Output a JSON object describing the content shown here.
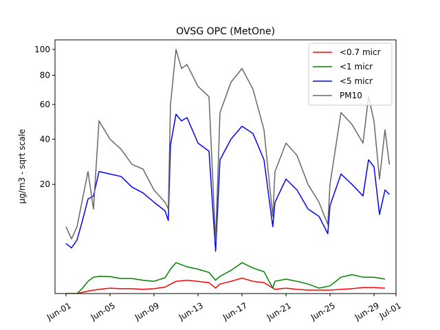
{
  "chart_data": {
    "type": "line",
    "title": "OVSG OPC (MetOne)",
    "xlabel": "",
    "ylabel": "µg/m3 - sqrt scale",
    "y_scale": "sqrt",
    "ylim": [
      0,
      108
    ],
    "xlim": [
      "2024-05-31",
      "2024-07-01"
    ],
    "x_ticks": [
      {
        "date": "2024-06-01",
        "label": "Jun-01"
      },
      {
        "date": "2024-06-05",
        "label": "Jun-05"
      },
      {
        "date": "2024-06-09",
        "label": "Jun-09"
      },
      {
        "date": "2024-06-13",
        "label": "Jun-13"
      },
      {
        "date": "2024-06-17",
        "label": "Jun-17"
      },
      {
        "date": "2024-06-21",
        "label": "Jun-21"
      },
      {
        "date": "2024-06-25",
        "label": "Jun-25"
      },
      {
        "date": "2024-06-29",
        "label": "Jun-29"
      },
      {
        "date": "2024-07-01",
        "label": "Jul-01"
      }
    ],
    "y_ticks": [
      20,
      40,
      60,
      80,
      100
    ],
    "grid": false,
    "legend_position": "top-right",
    "series": [
      {
        "name": "<0.7 micr",
        "color": "#ff0000",
        "points": [
          [
            "2024-06-01",
            0.0
          ],
          [
            "2024-06-02",
            0.0
          ],
          [
            "2024-06-03",
            0.01
          ],
          [
            "2024-06-04",
            0.03
          ],
          [
            "2024-06-05",
            0.05
          ],
          [
            "2024-06-06",
            0.04
          ],
          [
            "2024-06-07",
            0.04
          ],
          [
            "2024-06-08",
            0.03
          ],
          [
            "2024-06-09",
            0.04
          ],
          [
            "2024-06-10",
            0.07
          ],
          [
            "2024-06-11",
            0.25
          ],
          [
            "2024-06-12",
            0.3
          ],
          [
            "2024-06-13",
            0.25
          ],
          [
            "2024-06-14",
            0.2
          ],
          [
            "2024-06-14.6",
            0.05
          ],
          [
            "2024-06-15",
            0.15
          ],
          [
            "2024-06-16",
            0.25
          ],
          [
            "2024-06-17",
            0.4
          ],
          [
            "2024-06-18",
            0.25
          ],
          [
            "2024-06-19",
            0.2
          ],
          [
            "2024-06-20",
            0.03
          ],
          [
            "2024-06-21",
            0.05
          ],
          [
            "2024-06-22",
            0.03
          ],
          [
            "2024-06-23",
            0.02
          ],
          [
            "2024-06-24",
            0.02
          ],
          [
            "2024-06-25",
            0.02
          ],
          [
            "2024-06-26",
            0.03
          ],
          [
            "2024-06-27",
            0.04
          ],
          [
            "2024-06-28",
            0.06
          ],
          [
            "2024-06-29",
            0.06
          ],
          [
            "2024-06-30",
            0.05
          ]
        ]
      },
      {
        "name": "<1 micr",
        "color": "#008000",
        "points": [
          [
            "2024-06-01",
            0.0
          ],
          [
            "2024-06-02",
            0.0
          ],
          [
            "2024-06-02.5",
            0.05
          ],
          [
            "2024-06-03",
            0.25
          ],
          [
            "2024-06-03.5",
            0.45
          ],
          [
            "2024-06-04",
            0.5
          ],
          [
            "2024-06-05",
            0.48
          ],
          [
            "2024-06-06",
            0.38
          ],
          [
            "2024-06-07",
            0.38
          ],
          [
            "2024-06-08",
            0.3
          ],
          [
            "2024-06-09",
            0.25
          ],
          [
            "2024-06-10",
            0.42
          ],
          [
            "2024-06-10.5",
            1.0
          ],
          [
            "2024-06-11",
            1.6
          ],
          [
            "2024-06-12",
            1.2
          ],
          [
            "2024-06-13",
            1.0
          ],
          [
            "2024-06-14",
            0.75
          ],
          [
            "2024-06-14.6",
            0.3
          ],
          [
            "2024-06-15",
            0.5
          ],
          [
            "2024-06-16",
            0.9
          ],
          [
            "2024-06-17",
            1.6
          ],
          [
            "2024-06-18",
            1.1
          ],
          [
            "2024-06-19",
            0.8
          ],
          [
            "2024-06-19.8",
            0.05
          ],
          [
            "2024-06-20",
            0.25
          ],
          [
            "2024-06-21",
            0.35
          ],
          [
            "2024-06-22",
            0.25
          ],
          [
            "2024-06-23",
            0.15
          ],
          [
            "2024-06-24",
            0.05
          ],
          [
            "2024-06-25",
            0.1
          ],
          [
            "2024-06-26",
            0.45
          ],
          [
            "2024-06-27",
            0.6
          ],
          [
            "2024-06-28",
            0.45
          ],
          [
            "2024-06-29",
            0.45
          ],
          [
            "2024-06-30",
            0.35
          ]
        ]
      },
      {
        "name": "<5 micr",
        "color": "#0000ff",
        "points": [
          [
            "2024-06-01",
            4.2
          ],
          [
            "2024-06-01.5",
            3.5
          ],
          [
            "2024-06-02",
            4.8
          ],
          [
            "2024-06-02.5",
            9.0
          ],
          [
            "2024-06-03",
            15.0
          ],
          [
            "2024-06-03.5",
            16.0
          ],
          [
            "2024-06-04",
            25.0
          ],
          [
            "2024-06-05",
            24.0
          ],
          [
            "2024-06-06",
            23.0
          ],
          [
            "2024-06-07",
            19.0
          ],
          [
            "2024-06-08",
            17.0
          ],
          [
            "2024-06-09",
            14.0
          ],
          [
            "2024-06-10",
            11.5
          ],
          [
            "2024-06-10.3",
            9.0
          ],
          [
            "2024-06-10.5",
            37.0
          ],
          [
            "2024-06-11",
            54.0
          ],
          [
            "2024-06-11.5",
            50.0
          ],
          [
            "2024-06-12",
            52.0
          ],
          [
            "2024-06-13",
            38.0
          ],
          [
            "2024-06-14",
            34.0
          ],
          [
            "2024-06-14.6",
            3.0
          ],
          [
            "2024-06-15",
            30.0
          ],
          [
            "2024-06-16",
            40.0
          ],
          [
            "2024-06-17",
            47.0
          ],
          [
            "2024-06-18",
            43.0
          ],
          [
            "2024-06-19",
            30.0
          ],
          [
            "2024-06-19.8",
            7.5
          ],
          [
            "2024-06-20",
            14.0
          ],
          [
            "2024-06-21",
            22.0
          ],
          [
            "2024-06-22",
            18.0
          ],
          [
            "2024-06-23",
            12.0
          ],
          [
            "2024-06-24",
            10.0
          ],
          [
            "2024-06-24.8",
            6.0
          ],
          [
            "2024-06-25",
            13.0
          ],
          [
            "2024-06-26",
            24.0
          ],
          [
            "2024-06-27",
            20.0
          ],
          [
            "2024-06-28",
            16.0
          ],
          [
            "2024-06-28.5",
            30.0
          ],
          [
            "2024-06-29",
            27.0
          ],
          [
            "2024-06-29.5",
            10.5
          ],
          [
            "2024-06-30",
            18.0
          ],
          [
            "2024-06-30.4",
            16.5
          ]
        ]
      },
      {
        "name": "PM10",
        "color": "#666666",
        "points": [
          [
            "2024-06-01",
            7.5
          ],
          [
            "2024-06-01.5",
            5.0
          ],
          [
            "2024-06-02",
            7.5
          ],
          [
            "2024-06-02.5",
            15.0
          ],
          [
            "2024-06-03",
            25.0
          ],
          [
            "2024-06-03.5",
            12.0
          ],
          [
            "2024-06-04",
            50.0
          ],
          [
            "2024-06-05",
            40.0
          ],
          [
            "2024-06-06",
            35.0
          ],
          [
            "2024-06-07",
            28.0
          ],
          [
            "2024-06-08",
            26.0
          ],
          [
            "2024-06-09",
            18.0
          ],
          [
            "2024-06-10",
            14.0
          ],
          [
            "2024-06-10.3",
            12.0
          ],
          [
            "2024-06-10.5",
            60.0
          ],
          [
            "2024-06-11",
            100.0
          ],
          [
            "2024-06-11.5",
            85.0
          ],
          [
            "2024-06-12",
            88.0
          ],
          [
            "2024-06-13",
            72.0
          ],
          [
            "2024-06-14",
            65.0
          ],
          [
            "2024-06-14.6",
            4.5
          ],
          [
            "2024-06-15",
            55.0
          ],
          [
            "2024-06-16",
            75.0
          ],
          [
            "2024-06-17",
            85.0
          ],
          [
            "2024-06-18",
            70.0
          ],
          [
            "2024-06-19",
            45.0
          ],
          [
            "2024-06-19.8",
            10.0
          ],
          [
            "2024-06-20",
            25.0
          ],
          [
            "2024-06-21",
            38.0
          ],
          [
            "2024-06-22",
            32.0
          ],
          [
            "2024-06-23",
            20.0
          ],
          [
            "2024-06-24",
            14.0
          ],
          [
            "2024-06-24.8",
            8.0
          ],
          [
            "2024-06-25",
            20.0
          ],
          [
            "2024-06-26",
            55.0
          ],
          [
            "2024-06-27",
            48.0
          ],
          [
            "2024-06-28",
            38.0
          ],
          [
            "2024-06-28.5",
            65.0
          ],
          [
            "2024-06-29",
            50.0
          ],
          [
            "2024-06-29.5",
            22.0
          ],
          [
            "2024-06-30",
            45.0
          ],
          [
            "2024-06-30.4",
            28.0
          ]
        ]
      }
    ]
  }
}
